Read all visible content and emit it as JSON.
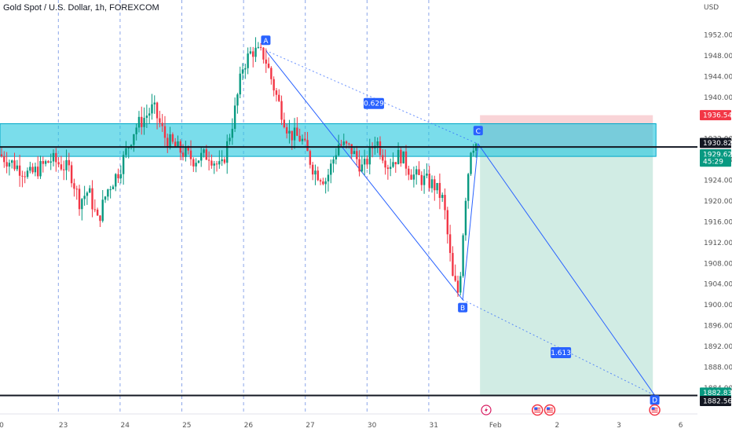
{
  "header": {
    "title": "Gold Spot / U.S. Dollar, 1h, FOREXCOM",
    "currency": "USD"
  },
  "colors": {
    "up": "#089981",
    "down": "#f23645",
    "zone": "#22c7dd",
    "level": "#131722",
    "pattern": "#2962ff",
    "stop_zone": "#f7c5c9",
    "target_zone": "#c9e9df",
    "take_profit": "#089981"
  },
  "chart_data": {
    "type": "candlestick",
    "title": "Gold Spot / U.S. Dollar, 1h, FOREXCOM",
    "ylabel": "USD",
    "ylim": [
      1879,
      1956
    ],
    "xlim": [
      0,
      11
    ],
    "y_ticks": [
      1884,
      1888,
      1892,
      1896,
      1900,
      1904,
      1908,
      1912,
      1916,
      1920,
      1924,
      1928,
      1932,
      1940,
      1944,
      1948,
      1952
    ],
    "x_ticks": [
      {
        "x": 0.0,
        "label": "0"
      },
      {
        "x": 1.0,
        "label": "23"
      },
      {
        "x": 2.0,
        "label": "24"
      },
      {
        "x": 3.0,
        "label": "25"
      },
      {
        "x": 4.0,
        "label": "26"
      },
      {
        "x": 5.0,
        "label": "27"
      },
      {
        "x": 6.0,
        "label": "30"
      },
      {
        "x": 7.0,
        "label": "31"
      },
      {
        "x": 8.0,
        "label": "Feb"
      },
      {
        "x": 9.0,
        "label": "2"
      },
      {
        "x": 10.0,
        "label": "3"
      },
      {
        "x": 11.0,
        "label": "6"
      }
    ],
    "session_separators": [
      0.92,
      1.92,
      2.92,
      3.92,
      4.92,
      5.92,
      6.92
    ],
    "price_anchors": [
      [
        0.0,
        1929
      ],
      [
        0.25,
        1927
      ],
      [
        0.5,
        1925
      ],
      [
        0.85,
        1928
      ],
      [
        1.15,
        1926
      ],
      [
        1.3,
        1920
      ],
      [
        1.45,
        1922
      ],
      [
        1.6,
        1916
      ],
      [
        1.75,
        1922
      ],
      [
        1.95,
        1926
      ],
      [
        2.2,
        1934
      ],
      [
        2.5,
        1938
      ],
      [
        2.7,
        1932
      ],
      [
        2.9,
        1930
      ],
      [
        3.15,
        1928
      ],
      [
        3.4,
        1929
      ],
      [
        3.6,
        1926
      ],
      [
        3.8,
        1936
      ],
      [
        3.95,
        1946
      ],
      [
        4.1,
        1949
      ],
      [
        4.3,
        1948
      ],
      [
        4.5,
        1940
      ],
      [
        4.7,
        1933
      ],
      [
        4.9,
        1932
      ],
      [
        5.1,
        1926
      ],
      [
        5.3,
        1924
      ],
      [
        5.5,
        1931
      ],
      [
        5.7,
        1930
      ],
      [
        5.9,
        1926
      ],
      [
        6.1,
        1932
      ],
      [
        6.3,
        1927
      ],
      [
        6.5,
        1929
      ],
      [
        6.7,
        1925
      ],
      [
        6.9,
        1924
      ],
      [
        7.05,
        1923
      ],
      [
        7.2,
        1920
      ],
      [
        7.35,
        1905
      ],
      [
        7.45,
        1902
      ],
      [
        7.55,
        1920
      ],
      [
        7.65,
        1931
      ],
      [
        7.72,
        1931
      ]
    ],
    "resistance_zone": {
      "from": 1928.6,
      "to": 1934.9
    },
    "levels": [
      {
        "name": "zone-level",
        "price": 1930.41,
        "label": "1930.41"
      },
      {
        "name": "target-level",
        "price": 1882.56,
        "label": "1882.56"
      }
    ],
    "pattern_points": [
      {
        "label": "A",
        "x": 4.28,
        "y": 1949.0
      },
      {
        "label": "B",
        "x": 7.47,
        "y": 1901.0
      },
      {
        "label": "C",
        "x": 7.72,
        "y": 1931.0
      },
      {
        "label": "D",
        "x": 10.58,
        "y": 1882.6
      }
    ],
    "ratios": [
      {
        "label": "0.629",
        "x": 6.03,
        "y": 1938.8
      },
      {
        "label": "1.613",
        "x": 9.06,
        "y": 1890.8
      }
    ],
    "position": {
      "x_from": 7.75,
      "x_to": 10.55,
      "entry": 1930.41,
      "stop": 1936.54,
      "target": 1882.56
    },
    "price_tags": [
      {
        "label": "1936.54",
        "price": 1936.54,
        "color": "#f23645"
      },
      {
        "label": "1930.82",
        "price": 1931.2,
        "color": "#131722"
      },
      {
        "label": "1929.62",
        "price": 1929.0,
        "color": "#089981"
      },
      {
        "label": "45:29",
        "price": 1927.6,
        "color": "#089981"
      },
      {
        "label": "1882.83",
        "price": 1883.1,
        "color": "#089981"
      },
      {
        "label": "1882.56",
        "price": 1881.5,
        "color": "#131722"
      }
    ],
    "event_markers": [
      {
        "x": 7.85,
        "icon": "lightning-icon"
      },
      {
        "x": 8.68,
        "icon": "us-flag-icon"
      },
      {
        "x": 8.88,
        "icon": "us-flag-icon"
      },
      {
        "x": 10.58,
        "icon": "us-flag-icon"
      }
    ]
  }
}
